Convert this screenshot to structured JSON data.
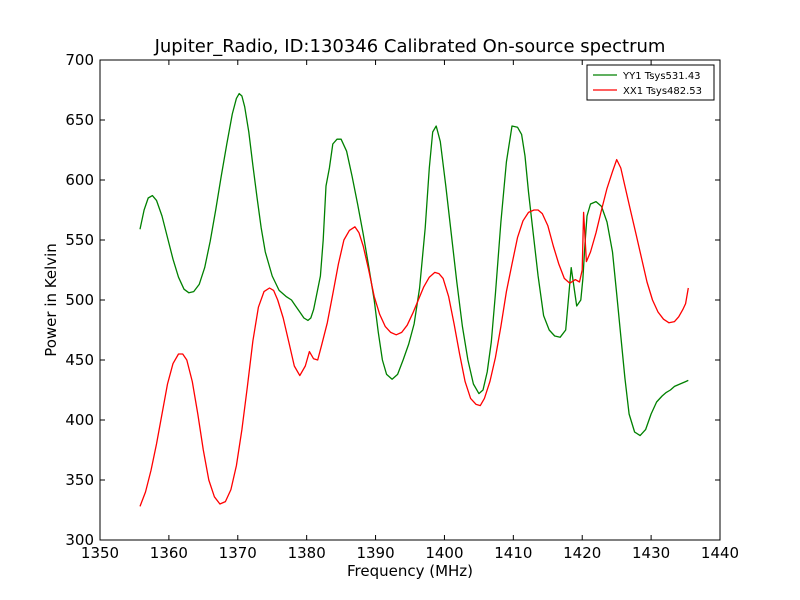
{
  "chart_data": {
    "type": "line",
    "title": "Jupiter_Radio, ID:130346 Calibrated On-source spectrum",
    "xlabel": "Frequency (MHz)",
    "ylabel": "Power in Kelvin",
    "xlim": [
      1350,
      1440
    ],
    "ylim": [
      300,
      700
    ],
    "xticks": [
      1350,
      1360,
      1370,
      1380,
      1390,
      1400,
      1410,
      1420,
      1430,
      1440
    ],
    "yticks": [
      300,
      350,
      400,
      450,
      500,
      550,
      600,
      650,
      700
    ],
    "grid": false,
    "legend_position": "top-right",
    "series": [
      {
        "name": "YY1 Tsys531.43",
        "color": "#008000",
        "x": [
          1355.8,
          1356.4,
          1357.0,
          1357.6,
          1358.2,
          1359.0,
          1359.8,
          1360.6,
          1361.4,
          1362.2,
          1362.9,
          1363.6,
          1364.4,
          1365.2,
          1366.0,
          1366.8,
          1367.6,
          1368.4,
          1369.2,
          1369.8,
          1370.2,
          1370.6,
          1371.0,
          1371.6,
          1372.2,
          1372.8,
          1373.4,
          1374.0,
          1375.0,
          1376.0,
          1377.0,
          1377.8,
          1378.4,
          1379.0,
          1379.6,
          1380.2,
          1380.6,
          1381.0,
          1381.4,
          1382.0,
          1382.4,
          1382.8,
          1383.3,
          1383.8,
          1384.4,
          1385.0,
          1385.8,
          1386.6,
          1387.4,
          1388.2,
          1389.0,
          1389.8,
          1390.4,
          1391.0,
          1391.6,
          1392.4,
          1393.2,
          1394.0,
          1394.8,
          1395.6,
          1396.4,
          1397.2,
          1397.8,
          1398.3,
          1398.8,
          1399.4,
          1400.2,
          1401.0,
          1401.8,
          1402.6,
          1403.4,
          1404.2,
          1405.0,
          1405.6,
          1406.2,
          1406.8,
          1407.4,
          1408.2,
          1409.0,
          1409.8,
          1410.6,
          1411.2,
          1411.7,
          1412.2,
          1412.8,
          1413.6,
          1414.4,
          1415.2,
          1416.0,
          1416.8,
          1417.6,
          1418.4,
          1419.2,
          1419.8,
          1420.1,
          1420.4,
          1420.7,
          1421.2,
          1422.0,
          1422.8,
          1423.6,
          1424.4,
          1425.0,
          1425.6,
          1426.2,
          1426.8,
          1427.6,
          1428.4,
          1429.2,
          1430.0,
          1430.8,
          1431.6,
          1432.2,
          1432.8,
          1433.4,
          1434.2,
          1435.0,
          1435.4
        ],
        "y": [
          559,
          575,
          585,
          587,
          583,
          570,
          552,
          534,
          519,
          509,
          506,
          507,
          513,
          527,
          549,
          575,
          603,
          630,
          655,
          668,
          672,
          670,
          661,
          640,
          612,
          585,
          560,
          540,
          520,
          508,
          503,
          500,
          495,
          490,
          485,
          483,
          485,
          492,
          503,
          520,
          550,
          595,
          610,
          630,
          634,
          634,
          624,
          603,
          580,
          555,
          528,
          500,
          473,
          450,
          438,
          434,
          438,
          450,
          463,
          480,
          510,
          560,
          610,
          640,
          645,
          632,
          595,
          555,
          515,
          478,
          450,
          430,
          422,
          425,
          440,
          465,
          505,
          565,
          615,
          645,
          644,
          638,
          620,
          590,
          560,
          520,
          487,
          475,
          470,
          469,
          475,
          527,
          495,
          500,
          518,
          547,
          570,
          580,
          582,
          578,
          565,
          540,
          505,
          470,
          435,
          405,
          390,
          387,
          392,
          405,
          415,
          420,
          423,
          425,
          428,
          430,
          432,
          433
        ],
        "values": [
          559,
          575,
          585,
          587,
          583,
          570,
          552,
          534,
          519,
          509,
          506,
          507,
          513,
          527,
          549,
          575,
          603,
          630,
          655,
          668,
          672,
          670,
          661,
          640,
          612,
          585,
          560,
          540,
          520,
          508,
          503,
          500,
          495,
          490,
          485,
          483,
          485,
          492,
          503,
          520,
          550,
          595,
          610,
          630,
          634,
          634,
          624,
          603,
          580,
          555,
          528,
          500,
          473,
          450,
          438,
          434,
          438,
          450,
          463,
          480,
          510,
          560,
          610,
          640,
          645,
          632,
          595,
          555,
          515,
          478,
          450,
          430,
          422,
          425,
          440,
          465,
          505,
          565,
          615,
          645,
          644,
          638,
          620,
          590,
          560,
          520,
          487,
          475,
          470,
          469,
          475,
          527,
          495,
          500,
          518,
          547,
          570,
          580,
          582,
          578,
          565,
          540,
          505,
          470,
          435,
          405,
          390,
          387,
          392,
          405,
          415,
          420,
          423,
          425,
          428,
          430,
          432,
          433
        ]
      },
      {
        "name": "XX1 Tsys482.53",
        "color": "#ff0000",
        "x": [
          1355.8,
          1356.6,
          1357.4,
          1358.2,
          1359.0,
          1359.8,
          1360.6,
          1361.4,
          1362.0,
          1362.6,
          1363.4,
          1364.2,
          1365.0,
          1365.8,
          1366.6,
          1367.4,
          1368.2,
          1369.0,
          1369.8,
          1370.6,
          1371.4,
          1372.2,
          1373.0,
          1373.8,
          1374.6,
          1375.2,
          1375.8,
          1376.6,
          1377.4,
          1378.2,
          1379.0,
          1379.8,
          1380.4,
          1381.0,
          1381.6,
          1382.2,
          1383.0,
          1383.8,
          1384.6,
          1385.4,
          1386.2,
          1387.0,
          1387.6,
          1388.2,
          1389.0,
          1389.8,
          1390.6,
          1391.4,
          1392.2,
          1393.0,
          1393.8,
          1394.6,
          1395.4,
          1396.2,
          1397.0,
          1397.8,
          1398.6,
          1399.2,
          1399.8,
          1400.6,
          1401.4,
          1402.2,
          1403.0,
          1403.8,
          1404.6,
          1405.2,
          1405.8,
          1406.6,
          1407.4,
          1408.2,
          1409.0,
          1409.8,
          1410.6,
          1411.4,
          1412.2,
          1413.0,
          1413.6,
          1414.2,
          1415.0,
          1415.8,
          1416.6,
          1417.4,
          1418.2,
          1419.0,
          1419.6,
          1420.0,
          1420.2,
          1420.6,
          1421.2,
          1422.0,
          1422.8,
          1423.6,
          1424.4,
          1425.0,
          1425.6,
          1426.2,
          1427.0,
          1427.8,
          1428.6,
          1429.4,
          1430.2,
          1431.0,
          1431.8,
          1432.6,
          1433.4,
          1434.0,
          1434.6,
          1435.0,
          1435.4
        ],
        "y": [
          328,
          340,
          358,
          380,
          405,
          430,
          447,
          455,
          455,
          450,
          432,
          405,
          375,
          350,
          336,
          330,
          332,
          342,
          362,
          392,
          428,
          466,
          494,
          507,
          510,
          508,
          500,
          485,
          465,
          445,
          437,
          445,
          457,
          451,
          450,
          463,
          481,
          505,
          530,
          550,
          558,
          561,
          556,
          545,
          525,
          503,
          488,
          478,
          473,
          471,
          473,
          479,
          489,
          500,
          511,
          519,
          523,
          522,
          518,
          503,
          480,
          455,
          432,
          418,
          413,
          412,
          418,
          432,
          452,
          478,
          507,
          530,
          552,
          566,
          573,
          575,
          575,
          572,
          562,
          545,
          530,
          518,
          514,
          517,
          515,
          525,
          573,
          532,
          540,
          556,
          575,
          593,
          607,
          617,
          610,
          595,
          575,
          555,
          535,
          515,
          500,
          490,
          484,
          481,
          482,
          486,
          492,
          497,
          510
        ],
        "values": [
          328,
          340,
          358,
          380,
          405,
          430,
          447,
          455,
          455,
          450,
          432,
          405,
          375,
          350,
          336,
          330,
          332,
          342,
          362,
          392,
          428,
          466,
          494,
          507,
          510,
          508,
          500,
          485,
          465,
          445,
          437,
          445,
          457,
          451,
          450,
          463,
          481,
          505,
          530,
          550,
          558,
          561,
          556,
          545,
          525,
          503,
          488,
          478,
          473,
          471,
          473,
          479,
          489,
          500,
          511,
          519,
          523,
          522,
          518,
          503,
          480,
          455,
          432,
          418,
          413,
          412,
          418,
          432,
          452,
          478,
          507,
          530,
          552,
          566,
          573,
          575,
          575,
          572,
          562,
          545,
          530,
          518,
          514,
          517,
          515,
          525,
          573,
          532,
          540,
          556,
          575,
          593,
          607,
          617,
          610,
          595,
          575,
          555,
          535,
          515,
          500,
          490,
          484,
          481,
          482,
          486,
          492,
          497,
          510
        ]
      }
    ]
  }
}
